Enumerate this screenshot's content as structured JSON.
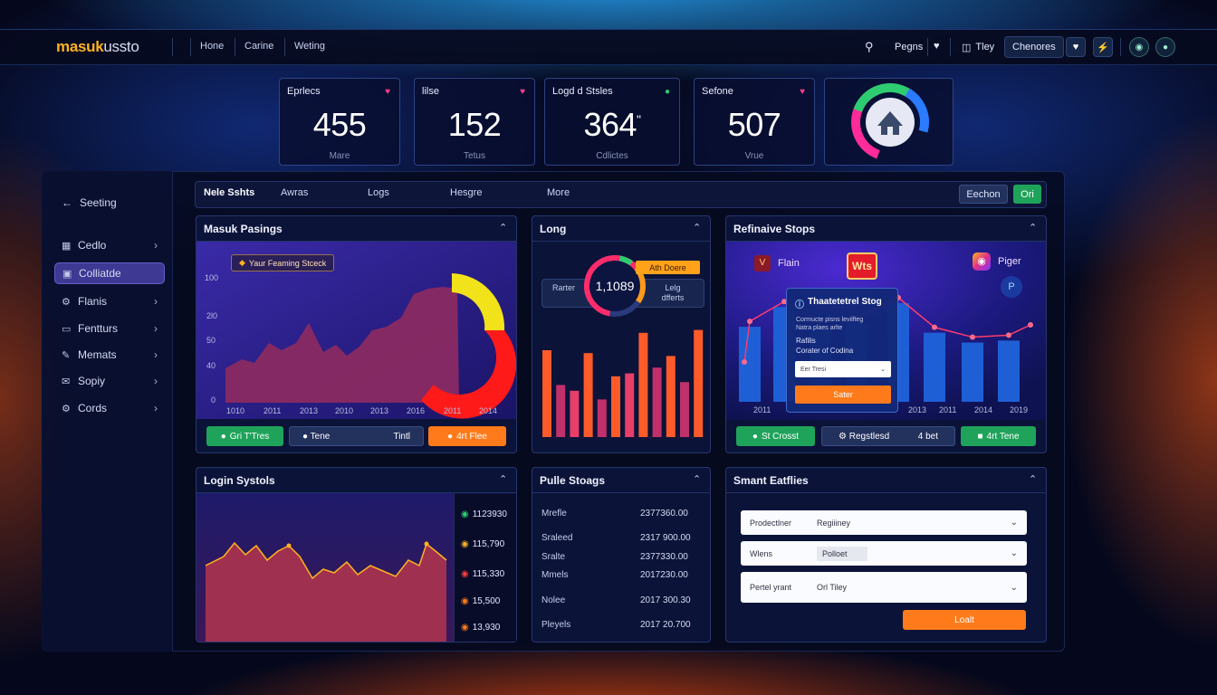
{
  "nav": {
    "logo_main": "masuk",
    "logo_rest": "ussto",
    "links": [
      "Hone",
      "Carine",
      "Weting"
    ],
    "right_label_1": "Pegns",
    "right_label_2": "Tley",
    "right_label_3": "Chenores"
  },
  "stats": [
    {
      "label": "Eprlecs",
      "value": "455",
      "sub": "Mare",
      "dot_color": "#ff3b8a"
    },
    {
      "label": "lilse",
      "value": "152",
      "sub": "Tetus",
      "dot_color": "#ff3b8a"
    },
    {
      "label": "Logd d Stsles",
      "value": "364",
      "value_sup": "\"",
      "sub": "Cdlictes",
      "dot_color": "#2ecc71"
    },
    {
      "label": "Sefone",
      "value": "507",
      "sub": "Vrue",
      "dot_color": "#ff3b8a"
    }
  ],
  "donut_colors": [
    "#ff2b9a",
    "#2ecc71",
    "#2a7bff",
    "#ff2b9a"
  ],
  "sidebar": {
    "back_label": "Seeting",
    "items": [
      {
        "label": "Cedlo",
        "icon": "doc-icon",
        "chevron": true
      },
      {
        "label": "Colliatde",
        "icon": "square-icon",
        "chevron": false,
        "active": true
      },
      {
        "label": "Flanis",
        "icon": "gear-icon",
        "chevron": true
      },
      {
        "label": "Fentturs",
        "icon": "screen-icon",
        "chevron": true
      },
      {
        "label": "Memats",
        "icon": "pen-icon",
        "chevron": true
      },
      {
        "label": "Sopiy",
        "icon": "mail-icon",
        "chevron": true
      },
      {
        "label": "Cords",
        "icon": "settings-icon",
        "chevron": true
      }
    ]
  },
  "tabs": {
    "items": [
      "Nele Sshts",
      "Awras",
      "Logs",
      "Hesgre",
      "More"
    ],
    "btn_1": "Eechon",
    "btn_2": "Ori"
  },
  "panel_masuk": {
    "title": "Masuk Pasings",
    "badge": "Yaur Feaming Stceck",
    "y_ticks": [
      "100",
      "2l0",
      "50",
      "40",
      "0"
    ],
    "x_ticks": [
      "1010",
      "2011",
      "2013",
      "2010",
      "2013",
      "2016",
      "2011",
      "2014"
    ],
    "btn_green": "Gri T'Tres",
    "btn_mid": "Tene",
    "btn_mid2": "Tintl",
    "btn_orange": "4rt Flee"
  },
  "panel_long": {
    "title": "Long",
    "center_value": "1,1089",
    "badge": "Ath Doere",
    "left_label": "Rarter",
    "right_label": "Lelg dfferts",
    "bars": [
      60,
      36,
      32,
      58,
      26,
      42,
      44,
      72,
      48,
      56,
      38,
      74
    ],
    "bar_colors": [
      "#ff5a2a",
      "#c0306a",
      "#e83e6a",
      "#ff5a2a",
      "#c0306a",
      "#ff5a2a",
      "#e83e6a",
      "#ff5a2a",
      "#c0306a",
      "#ff5a2a",
      "#c0306a",
      "#ff5a2a"
    ]
  },
  "panel_ref": {
    "title": "Refinaive Stops",
    "brand_1": "Flain",
    "brand_2_text": "Wts",
    "brand_3": "Piger",
    "modal_title": "Thaatetetrel Stog",
    "modal_text_1": "Cormucte pisns leviifteg",
    "modal_text_2": "Natra plaes arlte",
    "modal_text_3": "Rafilis",
    "modal_text_4": "Corater of Codina",
    "modal_input": "Eer Tresi",
    "modal_button": "Sater",
    "x_ticks": [
      "2011",
      "2013",
      "2011",
      "2014",
      "2019"
    ],
    "bars": [
      76,
      96,
      76,
      80,
      100,
      70,
      60,
      62
    ],
    "btn_green": "St Crosst",
    "btn_mid": "Regstlesd",
    "btn_mid2": "4 bet",
    "btn_green2": "4rt Tene"
  },
  "panel_login": {
    "title": "Login Systols",
    "legend": [
      {
        "label": "1123930",
        "color": "#2ecc71"
      },
      {
        "label": "115,790",
        "color": "#ffb21e"
      },
      {
        "label": "115,330",
        "color": "#ff3b3b"
      },
      {
        "label": "15,500",
        "color": "#ff7a1a"
      },
      {
        "label": "13,930",
        "color": "#ff7a1a"
      }
    ]
  },
  "panel_pulls": {
    "title": "Pulle Stoags",
    "rows": [
      {
        "label": "Mrefle",
        "value": "2377360.00"
      },
      {
        "label": "Sraleed",
        "value": "2317 900.00"
      },
      {
        "label": "Sralte",
        "value": "2377330.00"
      },
      {
        "label": "Mmels",
        "value": "2017230.00"
      },
      {
        "label": "Nolee",
        "value": "2017 300.30"
      },
      {
        "label": "Pleyels",
        "value": "2017 20.700"
      }
    ]
  },
  "panel_smart": {
    "title": "Smant Eatflies",
    "rows": [
      {
        "label": "Prodectlner",
        "value": "Regiiiney"
      },
      {
        "label": "Wlens",
        "value": "Polloet"
      },
      {
        "label": "Pertel yrant",
        "value": "Orl Tiley"
      }
    ],
    "button": "Loalt"
  }
}
